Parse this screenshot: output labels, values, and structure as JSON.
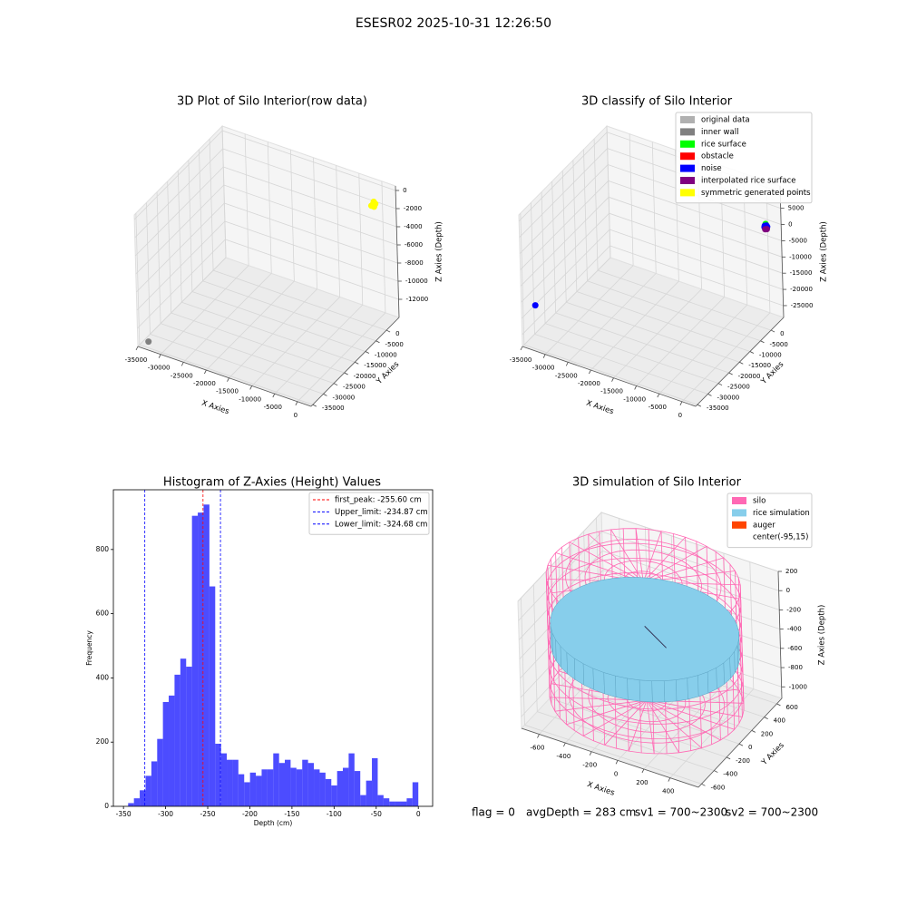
{
  "title": "ESESR02 2025-10-31 12:26:50",
  "chart_data": [
    {
      "type": "scatter3d",
      "title": "3D Plot of Silo Interior(row data)",
      "xlabel": "X Axies",
      "ylabel": "Y Axies",
      "zlabel": "Z Axies (Depth)",
      "xlim": [
        -35000,
        3000
      ],
      "ylim": [
        -35800,
        6000
      ],
      "zlim": [
        -14000,
        500
      ],
      "xticks": [
        -35000,
        -30000,
        -25000,
        -20000,
        -15000,
        -10000,
        -5000,
        0
      ],
      "yticks": [
        -35000,
        -30000,
        -25000,
        -20000,
        -15000,
        -10000,
        -5000,
        0
      ],
      "zticks": [
        -12000,
        -10000,
        -8000,
        -6000,
        -4000,
        -2000,
        0
      ],
      "grid": true,
      "series": [
        {
          "color": "#ffff00",
          "x": [
            -300,
            0,
            300,
            -100,
            200
          ],
          "y": [
            1500,
            1800,
            1500,
            2200,
            2300
          ],
          "z": [
            -1200,
            -1000,
            -1200,
            -900,
            -1100
          ]
        },
        {
          "color": "#808080",
          "x": [
            -33000
          ],
          "y": [
            -35000
          ],
          "z": [
            -13300
          ]
        }
      ]
    },
    {
      "type": "scatter3d",
      "title": "3D classify of Silo Interior",
      "xlabel": "X Axies",
      "ylabel": "Y Axies",
      "zlabel": "Z Axies (Depth)",
      "xlim": [
        -35000,
        3000
      ],
      "ylim": [
        -35800,
        6000
      ],
      "zlim": [
        -28650,
        11900
      ],
      "xticks": [
        -35000,
        -30000,
        -25000,
        -20000,
        -15000,
        -10000,
        -5000,
        0
      ],
      "yticks": [
        -35000,
        -30000,
        -25000,
        -20000,
        -15000,
        -10000,
        -5000,
        0
      ],
      "zticks": [
        -25000,
        -20000,
        -15000,
        -10000,
        -5000,
        0,
        5000,
        10000
      ],
      "grid": true,
      "legend": "upper right",
      "series": [
        {
          "name": "original data",
          "color": "#b0b0b0",
          "x": [],
          "y": [],
          "z": []
        },
        {
          "name": "inner wall",
          "color": "#808080",
          "x": [],
          "y": [],
          "z": []
        },
        {
          "name": "rice surface",
          "color": "#00ff00",
          "x": [
            1000
          ],
          "y": [
            3000
          ],
          "z": [
            1200
          ]
        },
        {
          "name": "obstacle",
          "color": "#ff0000",
          "x": [],
          "y": [],
          "z": []
        },
        {
          "name": "noise",
          "color": "#0000ff",
          "x": [
            800,
            1100,
            1300,
            900,
            1200,
            -33000
          ],
          "y": [
            3000,
            3200,
            2900,
            2700,
            3300,
            -33500
          ],
          "z": [
            500,
            600,
            400,
            300,
            200,
            -16500
          ]
        },
        {
          "name": "interpolated rice surface",
          "color": "#800080",
          "x": [
            900,
            1200
          ],
          "y": [
            3000,
            3100
          ],
          "z": [
            -500,
            -400
          ]
        },
        {
          "name": "symmetric generated points",
          "color": "#ffff00",
          "x": [],
          "y": [],
          "z": []
        }
      ]
    },
    {
      "type": "histogram",
      "title": "Histogram of Z-Axies (Height) Values",
      "xlabel": "Depth (cm)",
      "ylabel": "Frequency",
      "bins": [
        -344.5,
        -337.6,
        -330.7,
        -323.8,
        -316.9,
        -310.0,
        -303.2,
        -296.3,
        -289.4,
        -282.5,
        -275.6,
        -268.7,
        -261.8,
        -254.9,
        -248.0,
        -241.1,
        -234.2,
        -227.4,
        -220.5,
        -213.6,
        -206.7,
        -199.8,
        -192.9,
        -186.0,
        -179.1,
        -172.2,
        -165.3,
        -158.5,
        -151.6,
        -144.7,
        -137.8,
        -130.9,
        -124.0,
        -117.1,
        -110.2,
        -103.3,
        -96.4,
        -89.6,
        -82.7,
        -75.8,
        -68.9,
        -62.0,
        -55.1,
        -48.2,
        -41.3,
        -34.4,
        -27.6,
        -20.7,
        -13.8,
        -6.9,
        0
      ],
      "values": [
        10,
        25,
        50,
        95,
        140,
        210,
        325,
        345,
        410,
        460,
        435,
        905,
        915,
        940,
        685,
        195,
        165,
        145,
        145,
        100,
        75,
        105,
        95,
        115,
        115,
        165,
        135,
        145,
        120,
        115,
        145,
        135,
        115,
        105,
        85,
        65,
        110,
        120,
        165,
        110,
        35,
        80,
        150,
        35,
        25,
        15,
        15,
        15,
        25,
        75
      ],
      "color": "#0000ff",
      "alpha": 0.7,
      "xlim": [
        -362,
        17
      ],
      "ylim": [
        0,
        986
      ],
      "xticks": [
        -350,
        -300,
        -250,
        -200,
        -150,
        -100,
        -50,
        0
      ],
      "yticks": [
        0,
        200,
        400,
        600,
        800
      ],
      "legend": "upper right",
      "vlines": [
        {
          "name": "first_peak: -255.60 cm",
          "value": -255.6,
          "color": "#ff0000"
        },
        {
          "name": "Upper_limit: -234.87 cm",
          "value": -234.87,
          "color": "#0000ff"
        },
        {
          "name": "Lower_limit: -324.68 cm",
          "value": -324.68,
          "color": "#0000ff"
        }
      ]
    },
    {
      "type": "silo3d",
      "title": "3D simulation of Silo Interior",
      "xlabel": "X Axies",
      "ylabel": "Y Axies",
      "zlabel": "Z Axies (Depth)",
      "xlim": [
        -735,
        616
      ],
      "ylim": [
        -650,
        680
      ],
      "zlim": [
        -1120,
        200
      ],
      "xticks": [
        -600,
        -400,
        -200,
        0,
        200,
        400
      ],
      "yticks": [
        -600,
        -400,
        -200,
        0,
        200,
        400,
        600
      ],
      "zticks": [
        -1000,
        -800,
        -600,
        -400,
        -200,
        0,
        200
      ],
      "grid": true,
      "legend": "upper right",
      "series": [
        {
          "name": "silo",
          "color": "#ff69b4",
          "center": [
            -95,
            15
          ],
          "radius": 670,
          "z": [
            -1000,
            230
          ]
        },
        {
          "name": "rice simulation",
          "color": "#87ceeb",
          "center": [
            -95,
            15
          ],
          "radius": 650,
          "z": [
            -480,
            -260
          ]
        },
        {
          "name": "auger",
          "color": "#ff4500",
          "x": [
            -95,
            150
          ],
          "y": [
            15,
            -150
          ],
          "z": [
            -230,
            -230
          ]
        },
        {
          "name": "center(-95,15)",
          "color": "#ffffff"
        }
      ]
    }
  ],
  "status": [
    "flag = 0",
    "avgDepth = 283 cm",
    "sv1 = 700~2300",
    "sv2 = 700~2300"
  ]
}
